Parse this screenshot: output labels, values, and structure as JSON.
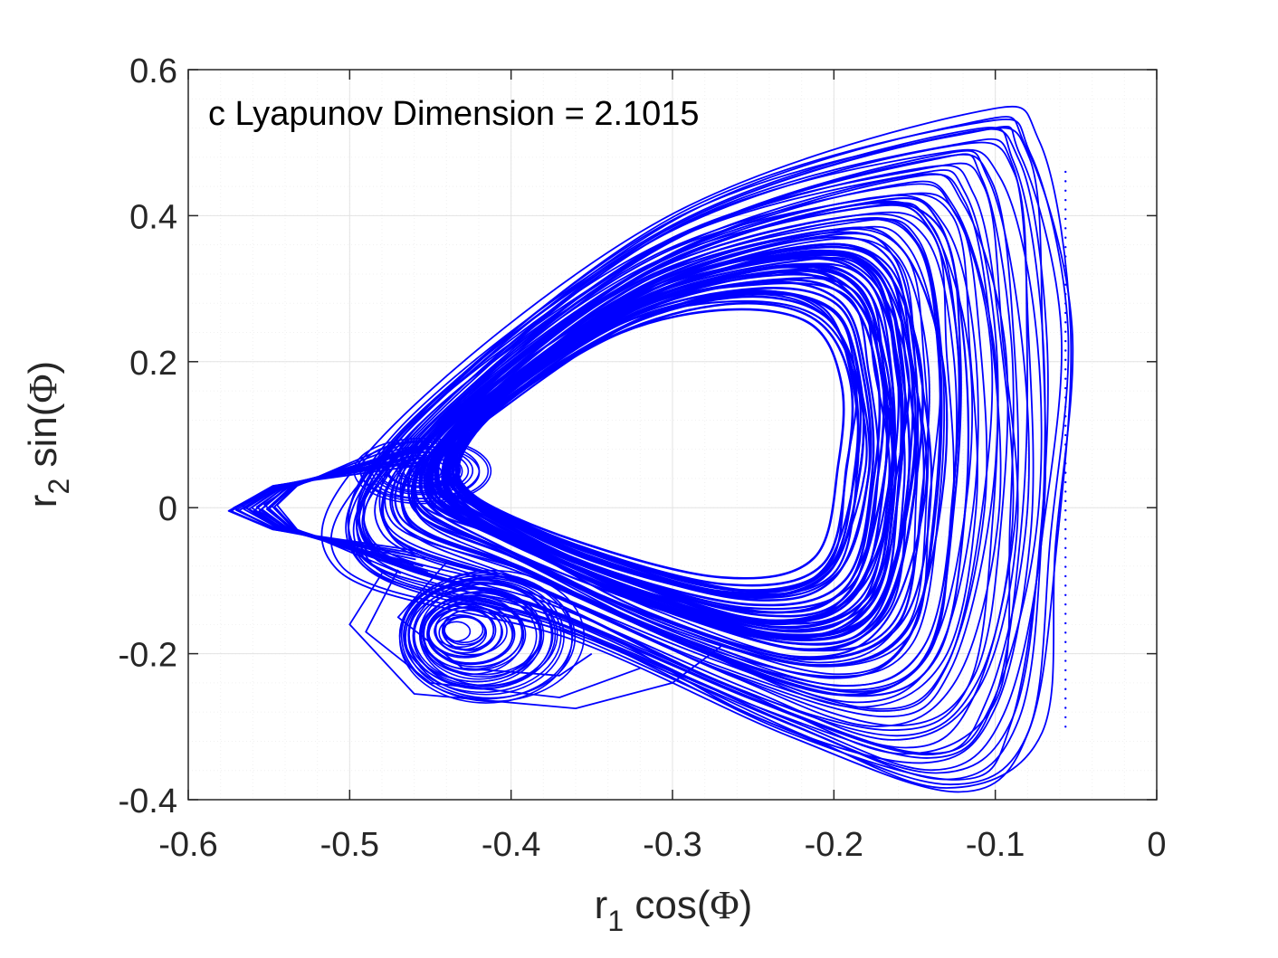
{
  "chart_data": {
    "type": "line",
    "title": "",
    "annotation": "c Lyapunov Dimension = 2.1015",
    "xlabel": {
      "base": "r",
      "subscript": "1",
      "rest": " cos(",
      "symbol": "Φ",
      "close": ")"
    },
    "ylabel": {
      "base": "r",
      "subscript": "2",
      "rest": " sin(",
      "symbol": "Φ",
      "close": ")"
    },
    "xlim": [
      -0.6,
      0
    ],
    "ylim": [
      -0.4,
      0.6
    ],
    "xticks": [
      -0.6,
      -0.5,
      -0.4,
      -0.3,
      -0.2,
      -0.1,
      0
    ],
    "xtick_labels": [
      "-0.6",
      "-0.5",
      "-0.4",
      "-0.3",
      "-0.2",
      "-0.1",
      "0"
    ],
    "yticks": [
      -0.4,
      -0.2,
      0,
      0.2,
      0.4,
      0.6
    ],
    "ytick_labels": [
      "-0.4",
      "-0.2",
      "0",
      "0.2",
      "0.4",
      "0.6"
    ],
    "grid": true,
    "minor_grid": true,
    "series": [
      {
        "name": "chaotic attractor trajectory",
        "color": "#0000ff",
        "description": "densely wound phase-space orbit",
        "approx_extent": {
          "x": [
            -0.575,
            -0.056
          ],
          "y": [
            -0.395,
            0.535
          ]
        },
        "key_points": {
          "left_tip": [
            -0.575,
            0.0
          ],
          "top_right": [
            -0.11,
            0.535
          ],
          "bottom_right": [
            -0.12,
            -0.395
          ],
          "rightmost": [
            -0.056,
            0.2
          ],
          "inner_hole_center": [
            -0.27,
            0.08
          ],
          "lower_spiral_center": [
            -0.43,
            -0.17
          ]
        }
      }
    ]
  },
  "colors": {
    "trajectory": "#0000ff",
    "axes": "#262626",
    "major_grid": "#e3e3e3",
    "minor_grid": "#f1f1f1"
  }
}
